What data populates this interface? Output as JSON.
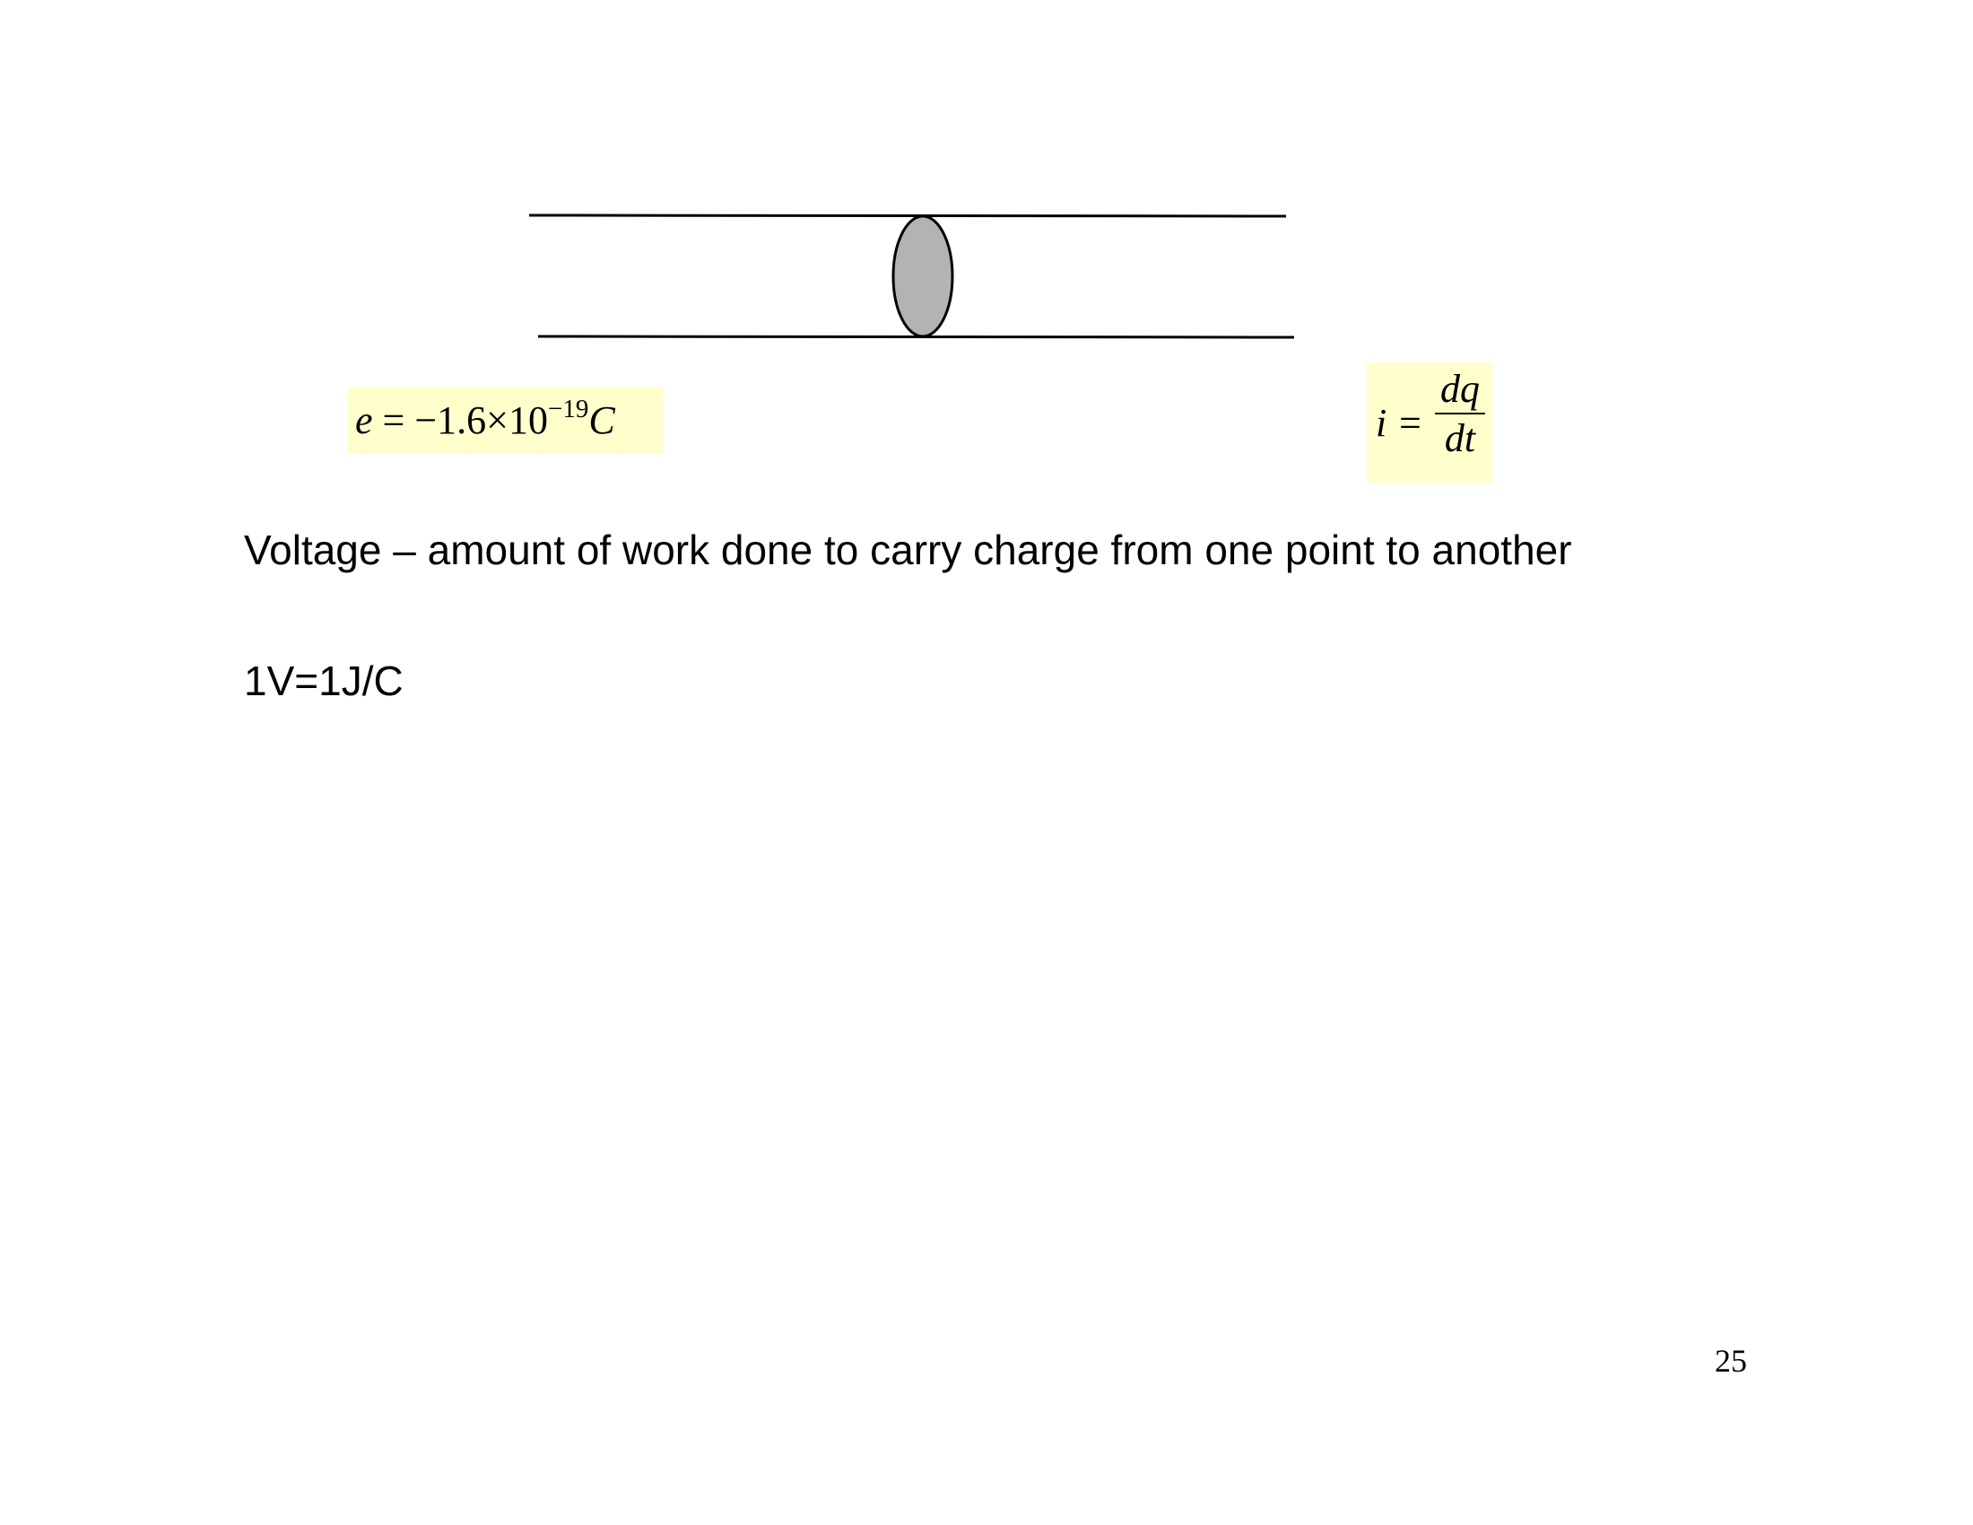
{
  "equations": {
    "charge": {
      "lhs": "e",
      "op": " = ",
      "mantissa": "−1.6×10",
      "exponent": "−19",
      "unit": "C"
    },
    "current": {
      "lhs": "i",
      "op": " =",
      "numerator": "dq",
      "denominator": "dt"
    }
  },
  "text": {
    "voltage_definition": "Voltage – amount of work done to carry charge from one point to another",
    "volt_unit": "1V=1J/C"
  },
  "page_number": "25",
  "colors": {
    "equation_highlight": "#ffffcc",
    "charge_fill": "#b3b3b3",
    "stroke": "#000000"
  }
}
